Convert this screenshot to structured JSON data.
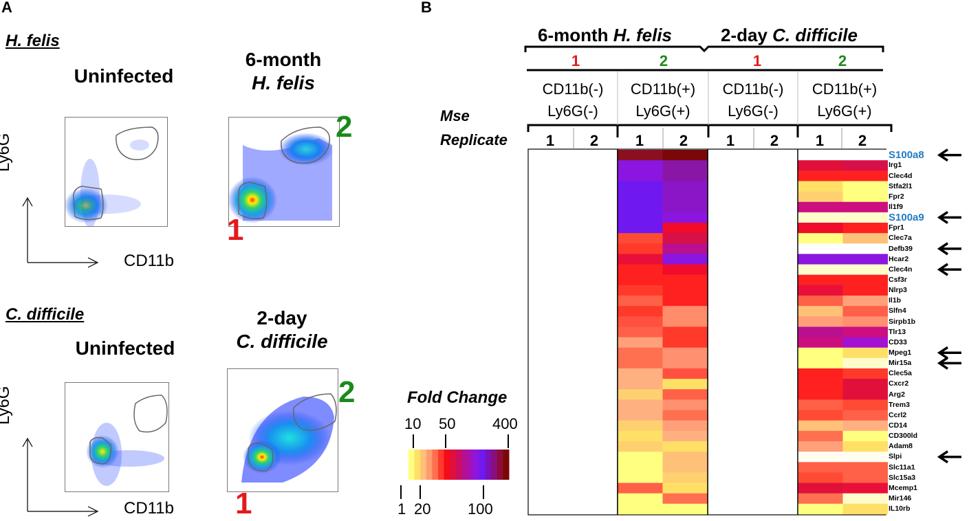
{
  "panel_a": {
    "letter": "A",
    "hfelis_section": "H. felis",
    "cdiff_section": "C. difficile",
    "uninfected_title": "Uninfected",
    "hfelis_title_line1": "6-month",
    "hfelis_title_line2": "H. felis",
    "cdiff_title_line1": "2-day",
    "cdiff_title_line2": "C. difficile",
    "y_axis": "Ly6G",
    "x_axis": "CD11b",
    "gate1": "1",
    "gate2": "2"
  },
  "panel_b": {
    "letter": "B",
    "header_hfelis_prefix": "6-month ",
    "header_hfelis_name": "H. felis",
    "header_cdiff_prefix": "2-day ",
    "header_cdiff_name": "C. difficile",
    "group_labels": [
      "1",
      "2",
      "1",
      "2"
    ],
    "cell_types": [
      {
        "line1": "CD11b(-)",
        "line2": "Ly6G(-)"
      },
      {
        "line1": "CD11b(+)",
        "line2": "Ly6G(+)"
      },
      {
        "line1": "CD11b(-)",
        "line2": "Ly6G(-)"
      },
      {
        "line1": "CD11b(+)",
        "line2": "Ly6G(+)"
      }
    ],
    "mse_label": "Mse",
    "replicate_label": "Replicate",
    "replicates": [
      "1",
      "2",
      "1",
      "2",
      "1",
      "2",
      "1",
      "2"
    ],
    "genes": [
      "S100a8",
      "Irg1",
      "Clec4d",
      "Stfa2l1",
      "Fpr2",
      "Il1f9",
      "S100a9",
      "Fpr1",
      "Clec7a",
      "Defb39",
      "Hcar2",
      "Clec4n",
      "Csf3r",
      "Nlrp3",
      "Il1b",
      "Slfn4",
      "Sirpb1b",
      "Tlr13",
      "CD33",
      "Mpeg1",
      "Mir15a",
      "Clec5a",
      "Cxcr2",
      "Arg2",
      "Trem3",
      "Ccrl2",
      "CD14",
      "CD300ld",
      "Adam8",
      "Slpi",
      "Slc11a1",
      "Slc15a3",
      "Mcemp1",
      "Mir146",
      "IL10rb"
    ],
    "highlighted_genes": [
      "S100a8",
      "S100a9"
    ],
    "arrow_genes": [
      "S100a8",
      "S100a9",
      "Defb39",
      "Clec4n",
      "Mpeg1",
      "Mir15a",
      "Slpi"
    ],
    "fold_change_title": "Fold Change",
    "legend_top_ticks": [
      "10",
      "50",
      "400"
    ],
    "legend_bottom_ticks": [
      "1",
      "20",
      "100"
    ],
    "legend_colors": [
      "#ffff80",
      "#ffe066",
      "#ffc078",
      "#ff9c6e",
      "#ff7050",
      "#ff3a2a",
      "#f40c18",
      "#e0103a",
      "#cc0e60",
      "#b80e90",
      "#a212b8",
      "#8a16e0",
      "#7018f0",
      "#7a12b8",
      "#8a0e7e",
      "#8e0c3a",
      "#7a0808"
    ],
    "heatmap_hfelis_cd11b_pos": [
      [
        "#8a1020",
        "#7a0808"
      ],
      [
        "#8a16e0",
        "#8a16a8"
      ],
      [
        "#8a16e0",
        "#8a16a8"
      ],
      [
        "#7018f0",
        "#8a16c8"
      ],
      [
        "#7018f0",
        "#8a16c8"
      ],
      [
        "#7018f0",
        "#8a16c8"
      ],
      [
        "#7018f0",
        "#8a16e0"
      ],
      [
        "#7018f0",
        "#f00c2a"
      ],
      [
        "#ff4a34",
        "#d8104a"
      ],
      [
        "#ff3a2a",
        "#b81090"
      ],
      [
        "#e8103a",
        "#8a16e0"
      ],
      [
        "#ff2020",
        "#f00c2a"
      ],
      [
        "#ff2020",
        "#ff2020"
      ],
      [
        "#ff3a2a",
        "#ff2020"
      ],
      [
        "#ff6048",
        "#ff2020"
      ],
      [
        "#ff3a2a",
        "#ff8c6a"
      ],
      [
        "#ff5040",
        "#ff8c6a"
      ],
      [
        "#ff6048",
        "#ff3a2a"
      ],
      [
        "#ffa07a",
        "#ff3a2a"
      ],
      [
        "#ff7050",
        "#ff9070"
      ],
      [
        "#ff7050",
        "#ff9070"
      ],
      [
        "#ffb080",
        "#ff5040"
      ],
      [
        "#ffb080",
        "#ffe066"
      ],
      [
        "#ffd070",
        "#ff6048"
      ],
      [
        "#ffb080",
        "#ff9070"
      ],
      [
        "#ffb080",
        "#ff7050"
      ],
      [
        "#ffd070",
        "#ffa07a"
      ],
      [
        "#ffe066",
        "#ffb080"
      ],
      [
        "#ffd070",
        "#ffe066"
      ],
      [
        "#ffff80",
        "#ffc078"
      ],
      [
        "#ffff80",
        "#ffc078"
      ],
      [
        "#ffff80",
        "#ffd070"
      ],
      [
        "#ff6048",
        "#ffe066"
      ],
      [
        "#ffff80",
        "#ff7050"
      ],
      [
        "#ffff80",
        "#ffff80"
      ]
    ],
    "heatmap_cdiff_cd11b_pos": [
      [
        "#ffffff",
        "#ffffff"
      ],
      [
        "#e0103a",
        "#d8104a"
      ],
      [
        "#ff2020",
        "#ff2020"
      ],
      [
        "#ffe066",
        "#ffff80"
      ],
      [
        "#ffd070",
        "#ffff80"
      ],
      [
        "#cc0e80",
        "#cc0e80"
      ],
      [
        "#fffccc",
        "#fffccc"
      ],
      [
        "#f00c2a",
        "#ff2020"
      ],
      [
        "#ffff80",
        "#ffc078"
      ],
      [
        "#ffffff",
        "#ffffff"
      ],
      [
        "#8a16e0",
        "#8a16e0"
      ],
      [
        "#fffccc",
        "#fffccc"
      ],
      [
        "#ff2020",
        "#ff2020"
      ],
      [
        "#e8103a",
        "#ff2020"
      ],
      [
        "#ff6048",
        "#ffa07a"
      ],
      [
        "#ffc078",
        "#ff6048"
      ],
      [
        "#ffa07a",
        "#ff9070"
      ],
      [
        "#b81090",
        "#cc0e80"
      ],
      [
        "#cc0e80",
        "#a212d0"
      ],
      [
        "#ffff80",
        "#ffe066"
      ],
      [
        "#ffff80",
        "#fffccc"
      ],
      [
        "#ff2020",
        "#ff3a2a"
      ],
      [
        "#ff2020",
        "#e0103a"
      ],
      [
        "#ff2020",
        "#e0103a"
      ],
      [
        "#ff6048",
        "#ff4a34"
      ],
      [
        "#ff4a34",
        "#ff6048"
      ],
      [
        "#ffc078",
        "#ffb080"
      ],
      [
        "#ff7050",
        "#ffff80"
      ],
      [
        "#ffa07a",
        "#ffe066"
      ],
      [
        "#fffef0",
        "#fffef0"
      ],
      [
        "#ff6048",
        "#ff6048"
      ],
      [
        "#ff4a34",
        "#ff6048"
      ],
      [
        "#e0103a",
        "#e8103a"
      ],
      [
        "#ff7050",
        "#fffccc"
      ],
      [
        "#ffff80",
        "#ffe066"
      ]
    ]
  }
}
